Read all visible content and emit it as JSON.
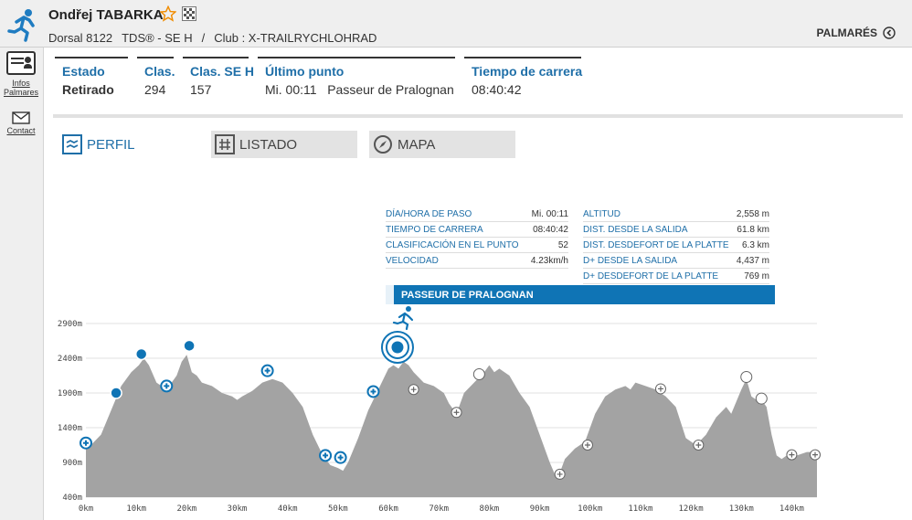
{
  "header": {
    "athlete_name": "Ondřej TABARKA",
    "bib": "Dorsal 8122",
    "category": "TDS® - SE H",
    "separator": "/",
    "club": "Club : X-TRAILRYCHLOHRAD",
    "palmares_label": "PALMARÉS"
  },
  "sidebar": {
    "infos_label_1": "Infos",
    "infos_label_2": "Palmares",
    "contact_label": "Contact"
  },
  "status": [
    {
      "label": "Estado",
      "value": "Retirado"
    },
    {
      "label": "Clas.",
      "value": "294"
    },
    {
      "label": "Clas. SE H",
      "value": "157"
    },
    {
      "label": "Último punto",
      "value": "Mi. 00:11   Passeur de Pralognan"
    },
    {
      "label": "Tiempo de carrera",
      "value": "08:40:42"
    }
  ],
  "tabs": [
    {
      "label": "PERFIL",
      "active": true
    },
    {
      "label": "LISTADO",
      "active": false
    },
    {
      "label": "MAPA",
      "active": false
    }
  ],
  "info_left": [
    {
      "key": "DÍA/HORA DE PASO",
      "value": "Mi. 00:11"
    },
    {
      "key": "TIEMPO DE CARRERA",
      "value": "08:40:42"
    },
    {
      "key": "CLASIFICACIÓN EN EL PUNTO",
      "value": "52"
    },
    {
      "key": "VELOCIDAD",
      "value": "4.23km/h"
    }
  ],
  "info_right": [
    {
      "key": "ALTITUD",
      "value": "2,558 m"
    },
    {
      "key": "DIST. DESDE LA SALIDA",
      "value": "61.8 km"
    },
    {
      "key": "DIST. DESDEFORT DE LA PLATTE",
      "value": "6.3 km"
    },
    {
      "key": "D+ DESDE LA SALIDA",
      "value": "4,437 m"
    },
    {
      "key": "D+ DESDEFORT DE LA PLATTE",
      "value": "769 m"
    }
  ],
  "point_name": "PASSEUR DE PRALOGNAN",
  "colors": {
    "accent": "#1f6fa8",
    "profile_fill": "#a3a3a3",
    "checkpoint": "#0f74b5"
  },
  "chart_data": {
    "type": "area",
    "xlim": [
      0,
      145
    ],
    "ylim": [
      400,
      2900
    ],
    "yticks": [
      400,
      900,
      1400,
      1900,
      2400,
      2900
    ],
    "ytick_labels": [
      "400m",
      "900m",
      "1400m",
      "1900m",
      "2400m",
      "2900m"
    ],
    "xticks": [
      0,
      10,
      20,
      30,
      40,
      50,
      60,
      70,
      80,
      90,
      100,
      110,
      120,
      130,
      140
    ],
    "xtick_labels": [
      "0km",
      "10km",
      "20km",
      "30km",
      "40km",
      "50km",
      "60km",
      "70km",
      "80km",
      "90km",
      "100km",
      "110km",
      "120km",
      "130km",
      "140km"
    ],
    "profile": [
      [
        0,
        1180
      ],
      [
        1,
        1150
      ],
      [
        3,
        1300
      ],
      [
        5,
        1650
      ],
      [
        7,
        2000
      ],
      [
        9,
        2200
      ],
      [
        10.5,
        2300
      ],
      [
        11.5,
        2400
      ],
      [
        12.5,
        2300
      ],
      [
        14,
        2050
      ],
      [
        16,
        1950
      ],
      [
        18,
        2150
      ],
      [
        19,
        2350
      ],
      [
        20,
        2450
      ],
      [
        21,
        2200
      ],
      [
        22,
        2150
      ],
      [
        23,
        2050
      ],
      [
        25,
        2000
      ],
      [
        27,
        1900
      ],
      [
        29,
        1850
      ],
      [
        30,
        1800
      ],
      [
        31,
        1850
      ],
      [
        33,
        1930
      ],
      [
        35,
        2050
      ],
      [
        37,
        2100
      ],
      [
        39,
        2050
      ],
      [
        41,
        1900
      ],
      [
        43,
        1700
      ],
      [
        45,
        1300
      ],
      [
        47,
        1000
      ],
      [
        48.5,
        860
      ],
      [
        50,
        820
      ],
      [
        51,
        780
      ],
      [
        52,
        900
      ],
      [
        54,
        1250
      ],
      [
        56,
        1650
      ],
      [
        58,
        1950
      ],
      [
        60,
        2250
      ],
      [
        61,
        2300
      ],
      [
        62,
        2250
      ],
      [
        63,
        2350
      ],
      [
        64,
        2300
      ],
      [
        65,
        2200
      ],
      [
        67,
        2050
      ],
      [
        69,
        2000
      ],
      [
        71,
        1900
      ],
      [
        72,
        1750
      ],
      [
        73,
        1650
      ],
      [
        74,
        1700
      ],
      [
        75,
        1900
      ],
      [
        77,
        2050
      ],
      [
        79,
        2200
      ],
      [
        80,
        2300
      ],
      [
        81,
        2200
      ],
      [
        82,
        2250
      ],
      [
        84,
        2150
      ],
      [
        86,
        1900
      ],
      [
        88,
        1700
      ],
      [
        90,
        1300
      ],
      [
        92,
        900
      ],
      [
        93,
        730
      ],
      [
        94,
        750
      ],
      [
        95,
        950
      ],
      [
        97,
        1100
      ],
      [
        99,
        1200
      ],
      [
        101,
        1600
      ],
      [
        103,
        1850
      ],
      [
        105,
        1950
      ],
      [
        107,
        2000
      ],
      [
        108,
        1950
      ],
      [
        109,
        2050
      ],
      [
        111,
        2000
      ],
      [
        113,
        1950
      ],
      [
        115,
        1850
      ],
      [
        117,
        1700
      ],
      [
        119,
        1250
      ],
      [
        121,
        1150
      ],
      [
        123,
        1300
      ],
      [
        125,
        1550
      ],
      [
        127,
        1700
      ],
      [
        128,
        1600
      ],
      [
        130,
        1950
      ],
      [
        131,
        2100
      ],
      [
        132,
        1850
      ],
      [
        133,
        1800
      ],
      [
        134,
        1800
      ],
      [
        135,
        1700
      ],
      [
        136,
        1300
      ],
      [
        137,
        1000
      ],
      [
        138,
        950
      ],
      [
        139,
        1000
      ],
      [
        141,
        1000
      ],
      [
        143,
        1050
      ],
      [
        145,
        1050
      ]
    ],
    "points_passed": [
      [
        0,
        1180
      ],
      [
        6,
        1900
      ],
      [
        11,
        2460
      ],
      [
        16,
        2000
      ],
      [
        20.5,
        2580
      ],
      [
        36,
        2220
      ],
      [
        47.5,
        1000
      ],
      [
        50.5,
        970
      ],
      [
        57,
        1920
      ],
      [
        61.8,
        2558
      ]
    ],
    "points_ahead": [
      [
        65,
        1950
      ],
      [
        73.5,
        1620
      ],
      [
        78,
        2170
      ],
      [
        94,
        730
      ],
      [
        99.5,
        1150
      ],
      [
        114,
        1960
      ],
      [
        121.5,
        1150
      ],
      [
        131,
        2130
      ],
      [
        134,
        1820
      ],
      [
        140,
        1010
      ],
      [
        148,
        1010
      ]
    ],
    "current_point": [
      61.8,
      2558
    ]
  }
}
